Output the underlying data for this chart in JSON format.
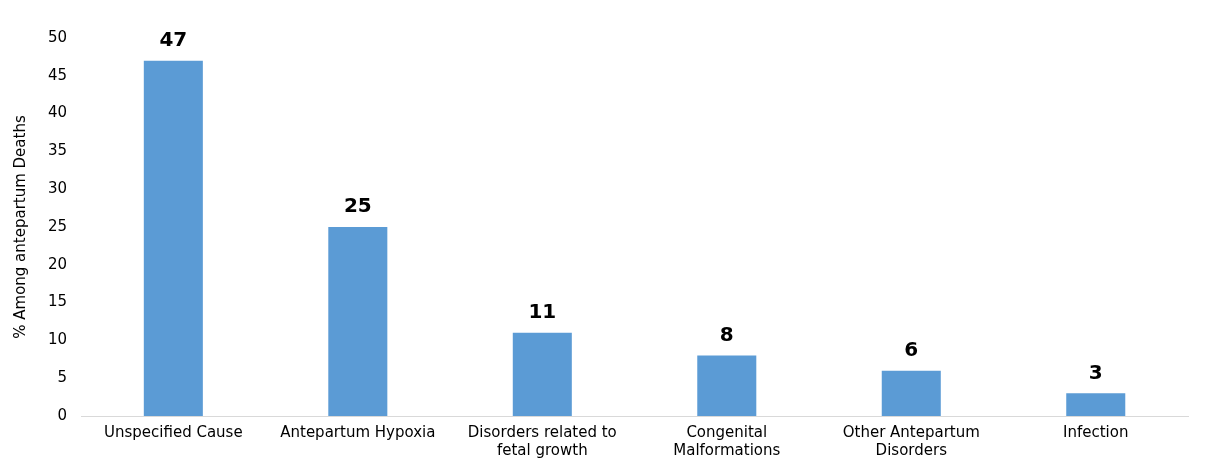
{
  "chart_data": {
    "type": "bar",
    "ylabel": "% Among antepartum Deaths",
    "categories": [
      "Unspecified Cause",
      "Antepartum Hypoxia",
      "Disorders related to fetal growth",
      "Congenital Malformations",
      "Other Antepartum Disorders",
      "Infection"
    ],
    "values": [
      47,
      25,
      11,
      8,
      6,
      3
    ],
    "color": "#5b9bd5",
    "ylim": [
      0,
      50
    ],
    "yticks": [
      0,
      5,
      10,
      15,
      20,
      25,
      30,
      35,
      40,
      45,
      50
    ],
    "grid": false,
    "legend": false,
    "data_labels": true
  }
}
